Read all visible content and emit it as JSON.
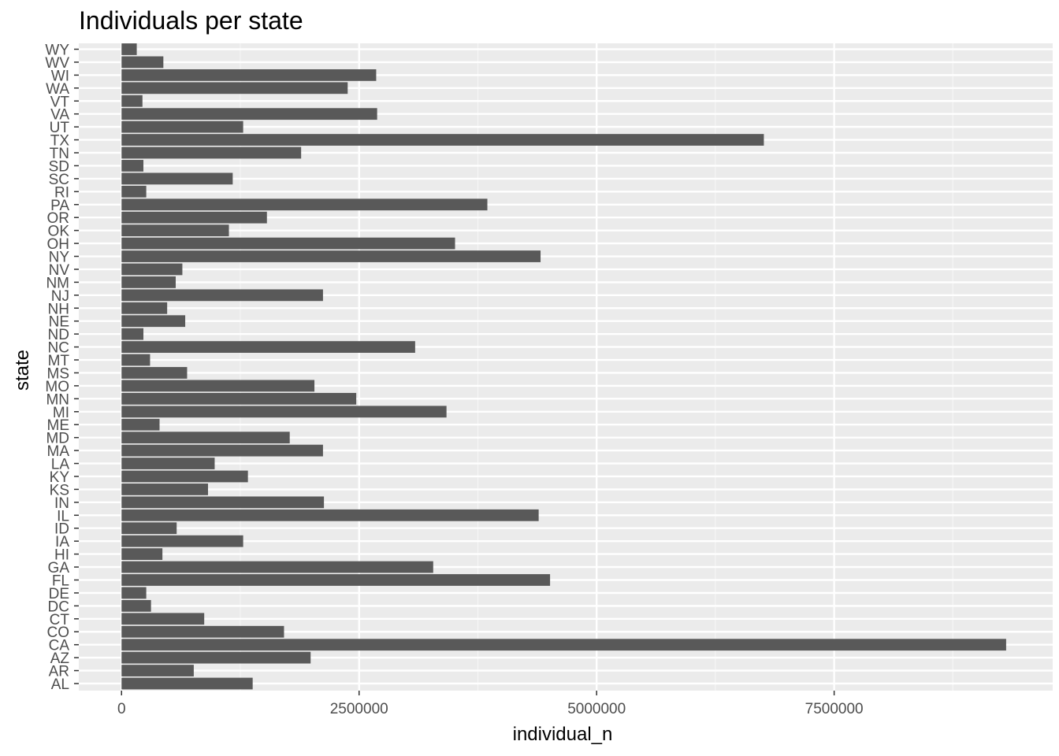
{
  "chart_data": {
    "type": "bar",
    "orientation": "horizontal",
    "title": "Individuals per state",
    "xlabel": "individual_n",
    "ylabel": "state",
    "xlim": [
      -450000,
      9800000
    ],
    "xticks": [
      0,
      2500000,
      5000000,
      7500000
    ],
    "xtick_labels": [
      "0",
      "2500000",
      "5000000",
      "7500000"
    ],
    "grid": true,
    "background": "#ebebeb",
    "bar_color": "#595959",
    "categories": [
      "AL",
      "AR",
      "AZ",
      "CA",
      "CO",
      "CT",
      "DC",
      "DE",
      "FL",
      "GA",
      "HI",
      "IA",
      "ID",
      "IL",
      "IN",
      "KS",
      "KY",
      "LA",
      "MA",
      "MD",
      "ME",
      "MI",
      "MN",
      "MO",
      "MS",
      "MT",
      "NC",
      "ND",
      "NE",
      "NH",
      "NJ",
      "NM",
      "NV",
      "NY",
      "OH",
      "OK",
      "OR",
      "PA",
      "RI",
      "SC",
      "SD",
      "TN",
      "TX",
      "UT",
      "VA",
      "VT",
      "WA",
      "WI",
      "WV",
      "WY"
    ],
    "values": [
      1380000,
      760000,
      1990000,
      9310000,
      1710000,
      870000,
      310000,
      260000,
      4510000,
      3280000,
      430000,
      1280000,
      580000,
      4390000,
      2130000,
      910000,
      1330000,
      980000,
      2120000,
      1770000,
      400000,
      3420000,
      2470000,
      2030000,
      690000,
      300000,
      3090000,
      230000,
      670000,
      480000,
      2120000,
      570000,
      640000,
      4410000,
      3510000,
      1130000,
      1530000,
      3850000,
      260000,
      1170000,
      230000,
      1890000,
      6760000,
      1280000,
      2690000,
      220000,
      2380000,
      2680000,
      440000,
      160000
    ]
  }
}
